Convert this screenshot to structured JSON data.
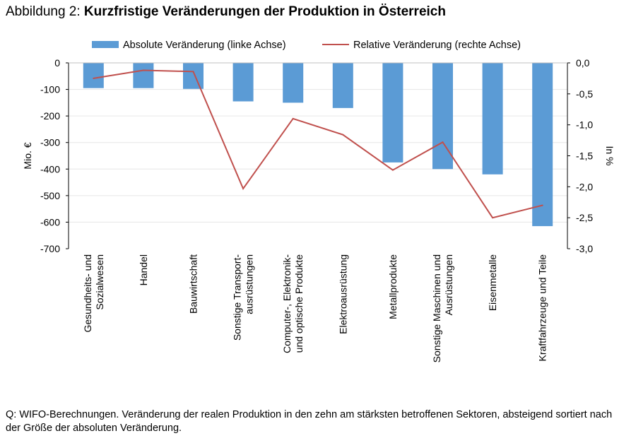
{
  "title": {
    "prefix": "Abbildung 2: ",
    "main": "Kurzfristige Veränderungen der Produktion in Österreich"
  },
  "chart_data": {
    "type": "bar+line",
    "categories": [
      [
        "Gesundheits- und",
        "Sozialwesen"
      ],
      [
        "Handel"
      ],
      [
        "Bauwirtschaft"
      ],
      [
        "Sonstige Transport-",
        "ausrüstungen"
      ],
      [
        "Computer-, Elektronik-",
        "und optische Produkte"
      ],
      [
        "Elektroausrüstung"
      ],
      [
        "Metallprodukte"
      ],
      [
        "Sonstige Maschinen und",
        "Ausrüstungen"
      ],
      [
        "Eisenmetalle"
      ],
      [
        "Kraftfahrzeuge und Teile"
      ]
    ],
    "series": [
      {
        "name": "Absolute Veränderung (linke Achse)",
        "type": "bar",
        "axis": "left",
        "color": "#5b9bd5",
        "values": [
          -95,
          -95,
          -98,
          -145,
          -150,
          -170,
          -375,
          -400,
          -420,
          -615
        ]
      },
      {
        "name": "Relative Veränderung (rechte Achse)",
        "type": "line",
        "axis": "right",
        "color": "#c0504d",
        "values": [
          -0.25,
          -0.12,
          -0.14,
          -2.03,
          -0.9,
          -1.16,
          -1.73,
          -1.28,
          -2.5,
          -2.3
        ]
      }
    ],
    "left_axis": {
      "label": "Mio. €",
      "ylim": [
        -700,
        0
      ],
      "ticks": [
        0,
        -100,
        -200,
        -300,
        -400,
        -500,
        -600,
        -700
      ],
      "tick_labels": [
        "0",
        "-100",
        "-200",
        "-300",
        "-400",
        "-500",
        "-600",
        "-700"
      ]
    },
    "right_axis": {
      "label": "In %",
      "ylim": [
        -3.0,
        0.0
      ],
      "ticks": [
        0,
        -0.5,
        -1,
        -1.5,
        -2,
        -2.5,
        -3
      ],
      "tick_labels": [
        "0,0",
        "-0,5",
        "-1,0",
        "-1,5",
        "-2,0",
        "-2,5",
        "-3,0"
      ]
    },
    "legend_position": "top",
    "grid": true
  },
  "source": "Q: WIFO-Berechnungen. Veränderung der realen Produktion in den zehn am stärksten betroffenen Sektoren, absteigend sortiert nach der Größe der absoluten Veränderung."
}
